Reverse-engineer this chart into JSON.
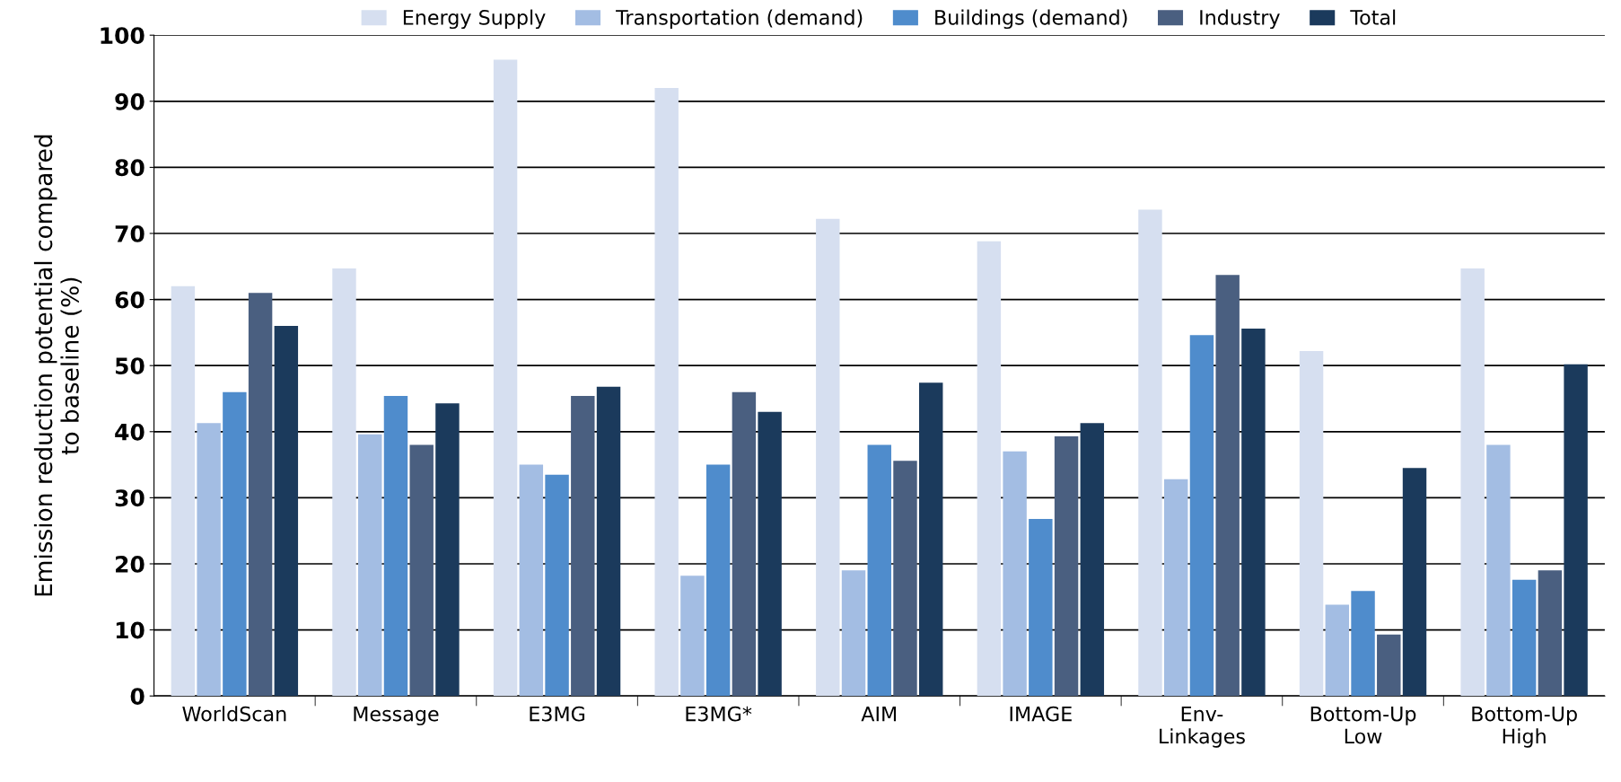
{
  "chart_data": {
    "type": "bar",
    "ylabel": "Emission reduction potential compared\nto baseline (%)",
    "categories": [
      "WorldScan",
      "Message",
      "E3MG",
      "E3MG*",
      "AIM",
      "IMAGE",
      "Env-\nLinkages",
      "Bottom-Up\nLow",
      "Bottom-Up\nHigh"
    ],
    "series": [
      {
        "name": "Energy Supply",
        "color": "#d6dff0",
        "values": [
          62,
          64.7,
          96.3,
          92,
          72.2,
          68.8,
          73.6,
          52.2,
          64.7
        ]
      },
      {
        "name": "Transportation (demand)",
        "color": "#a3bde3",
        "values": [
          41.3,
          39.6,
          35,
          18.2,
          19,
          37,
          32.8,
          13.8,
          38
        ]
      },
      {
        "name": "Buildings (demand)",
        "color": "#4f8ccc",
        "values": [
          46,
          45.4,
          33.5,
          35,
          38,
          26.8,
          54.6,
          15.9,
          17.6
        ]
      },
      {
        "name": "Industry",
        "color": "#4a5f80",
        "values": [
          61,
          38,
          45.4,
          46,
          35.6,
          39.3,
          63.7,
          9.3,
          19
        ]
      },
      {
        "name": "Total",
        "color": "#1b3a5c",
        "values": [
          56,
          44.3,
          46.8,
          43,
          47.4,
          41.3,
          55.6,
          34.5,
          50.2
        ]
      }
    ],
    "ylim": [
      0,
      100
    ],
    "yticks": [
      0,
      10,
      20,
      30,
      40,
      50,
      60,
      70,
      80,
      90,
      100
    ],
    "grid": "y",
    "legend": "top"
  }
}
